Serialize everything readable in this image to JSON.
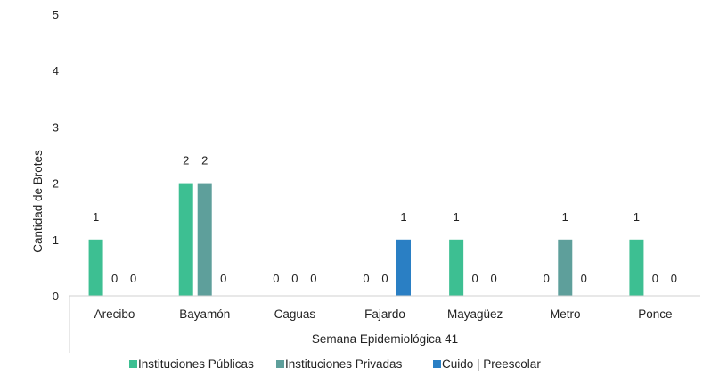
{
  "chart_data": {
    "type": "bar",
    "categories": [
      "Arecibo",
      "Bayamón",
      "Caguas",
      "Fajardo",
      "Mayagüez",
      "Metro",
      "Ponce"
    ],
    "series": [
      {
        "name": "Instituciones Públicas",
        "color": "#3dbf92",
        "values": [
          1,
          2,
          0,
          0,
          1,
          0,
          1
        ]
      },
      {
        "name": "Instituciones Privadas",
        "color": "#5e9f9b",
        "values": [
          0,
          2,
          0,
          0,
          0,
          1,
          0
        ]
      },
      {
        "name": "Cuido | Preescolar",
        "color": "#2a7fc4",
        "values": [
          0,
          0,
          0,
          1,
          0,
          0,
          0
        ]
      }
    ],
    "ylim": [
      0,
      5
    ],
    "yticks": [
      0,
      1,
      2,
      3,
      4,
      5
    ],
    "ylabel": "Cantidad de Brotes",
    "xlabel": "Semana Epidemiológica 41",
    "legend_position": "bottom",
    "data_labels": true,
    "grid": false
  }
}
